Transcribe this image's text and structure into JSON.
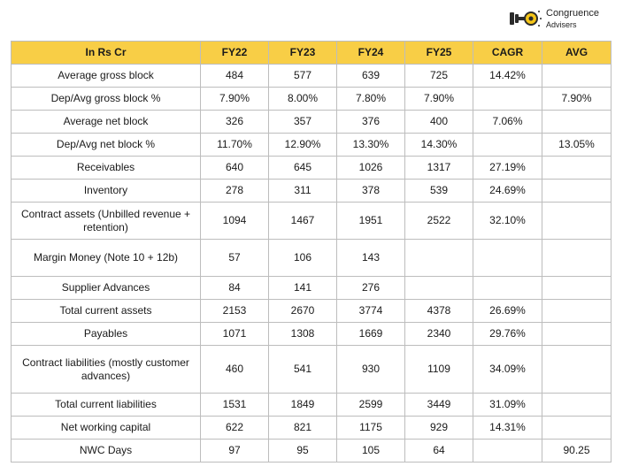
{
  "logo": {
    "name_line1": "Congruence",
    "name_line2": "Advisers",
    "icon": "key-lock-icon",
    "colors": {
      "key": "#2b2b2b",
      "accent": "#f5c518"
    }
  },
  "table": {
    "header_fill": "#f8ce46",
    "headers": [
      "In Rs Cr",
      "FY22",
      "FY23",
      "FY24",
      "FY25",
      "CAGR",
      "AVG"
    ],
    "rows": [
      {
        "label": "Average gross block",
        "fy22": "484",
        "fy23": "577",
        "fy24": "639",
        "fy25": "725",
        "cagr": "14.42%",
        "avg": ""
      },
      {
        "label": "Dep/Avg gross block %",
        "fy22": "7.90%",
        "fy23": "8.00%",
        "fy24": "7.80%",
        "fy25": "7.90%",
        "cagr": "",
        "avg": "7.90%"
      },
      {
        "label": "Average net block",
        "fy22": "326",
        "fy23": "357",
        "fy24": "376",
        "fy25": "400",
        "cagr": "7.06%",
        "avg": ""
      },
      {
        "label": "Dep/Avg net block %",
        "fy22": "11.70%",
        "fy23": "12.90%",
        "fy24": "13.30%",
        "fy25": "14.30%",
        "cagr": "",
        "avg": "13.05%"
      },
      {
        "label": "Receivables",
        "fy22": "640",
        "fy23": "645",
        "fy24": "1026",
        "fy25": "1317",
        "cagr": "27.19%",
        "avg": ""
      },
      {
        "label": "Inventory",
        "fy22": "278",
        "fy23": "311",
        "fy24": "378",
        "fy25": "539",
        "cagr": "24.69%",
        "avg": ""
      },
      {
        "label": "Contract assets (Unbilled revenue + retention)",
        "fy22": "1094",
        "fy23": "1467",
        "fy24": "1951",
        "fy25": "2522",
        "cagr": "32.10%",
        "avg": ""
      },
      {
        "label": "Margin Money (Note 10 + 12b)",
        "fy22": "57",
        "fy23": "106",
        "fy24": "143",
        "fy25": "",
        "cagr": "",
        "avg": ""
      },
      {
        "label": "Supplier Advances",
        "fy22": "84",
        "fy23": "141",
        "fy24": "276",
        "fy25": "",
        "cagr": "",
        "avg": ""
      },
      {
        "label": "Total current assets",
        "fy22": "2153",
        "fy23": "2670",
        "fy24": "3774",
        "fy25": "4378",
        "cagr": "26.69%",
        "avg": ""
      },
      {
        "label": "Payables",
        "fy22": "1071",
        "fy23": "1308",
        "fy24": "1669",
        "fy25": "2340",
        "cagr": "29.76%",
        "avg": ""
      },
      {
        "label": "Contract liabilities (mostly customer advances)",
        "fy22": "460",
        "fy23": "541",
        "fy24": "930",
        "fy25": "1109",
        "cagr": "34.09%",
        "avg": ""
      },
      {
        "label": "Total current liabilities",
        "fy22": "1531",
        "fy23": "1849",
        "fy24": "2599",
        "fy25": "3449",
        "cagr": "31.09%",
        "avg": ""
      },
      {
        "label": "Net working capital",
        "fy22": "622",
        "fy23": "821",
        "fy24": "1175",
        "fy25": "929",
        "cagr": "14.31%",
        "avg": ""
      },
      {
        "label": "NWC Days",
        "fy22": "97",
        "fy23": "95",
        "fy24": "105",
        "fy25": "64",
        "cagr": "",
        "avg": "90.25"
      }
    ]
  }
}
